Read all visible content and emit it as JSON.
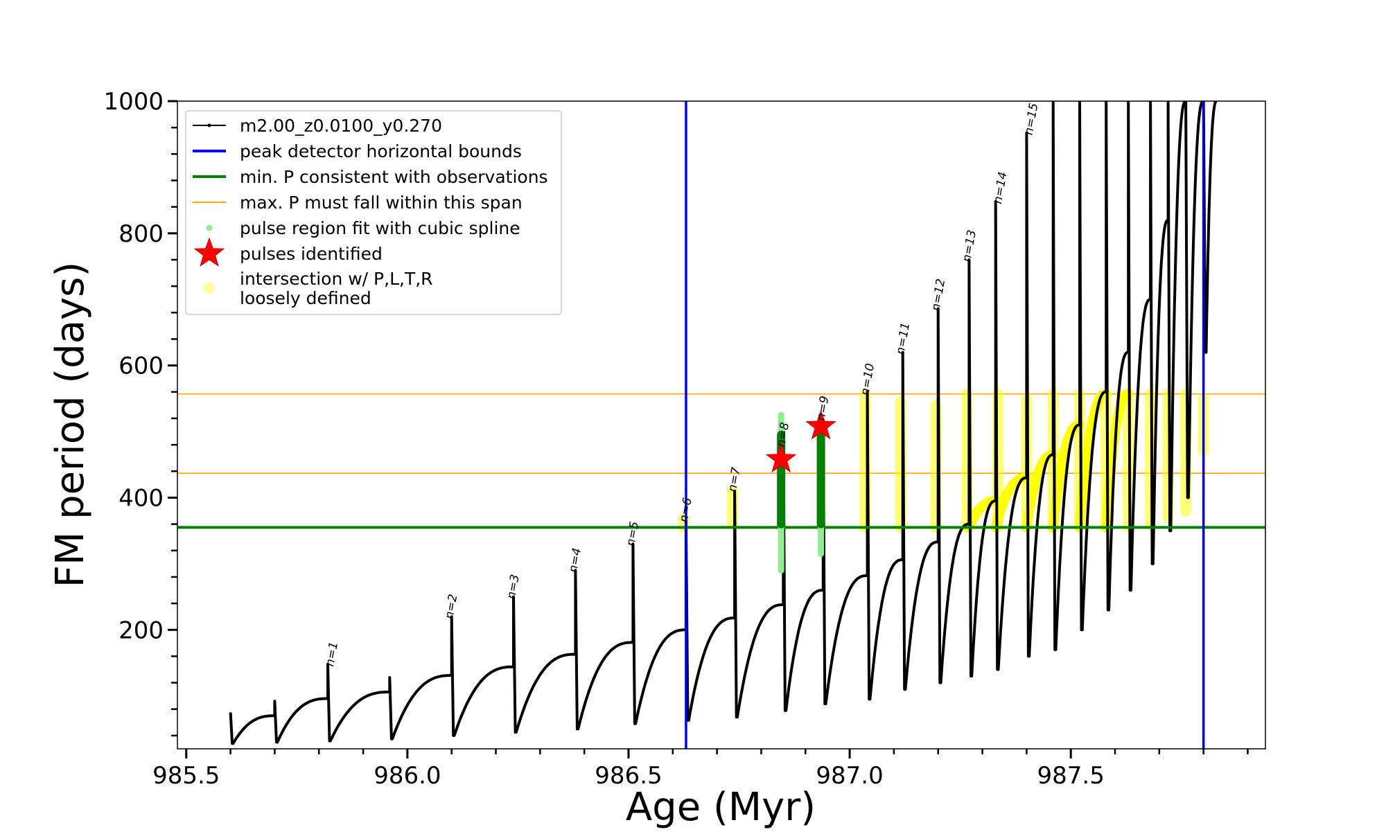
{
  "chart_data": {
    "type": "line",
    "xlabel": "Age (Myr)",
    "ylabel": "FM period (days)",
    "xlim": [
      985.48,
      987.94
    ],
    "ylim": [
      20,
      1000
    ],
    "x_ticks": [
      985.5,
      986.0,
      986.5,
      987.0,
      987.5
    ],
    "x_tick_labels": [
      "985.5",
      "986.0",
      "986.5",
      "987.0",
      "987.5"
    ],
    "y_ticks": [
      200,
      400,
      600,
      800,
      1000
    ],
    "y_tick_labels": [
      "200",
      "400",
      "600",
      "800",
      "1000"
    ],
    "grid": false,
    "legend_position": "top-left",
    "legend": [
      {
        "label": "m2.00_z0.0100_y0.270",
        "kind": "line-marker",
        "color": "#000000"
      },
      {
        "label": "peak detector horizontal bounds",
        "kind": "line",
        "color": "#0000ff"
      },
      {
        "label": "min. P consistent with observations",
        "kind": "line",
        "color": "#008000"
      },
      {
        "label": "max. P must fall within this span",
        "kind": "thin-line",
        "color": "#ffa500"
      },
      {
        "label": "pulse region fit with cubic spline",
        "kind": "dot",
        "color": "#90ee90"
      },
      {
        "label": "pulses identified",
        "kind": "star",
        "color": "#ff0000"
      },
      {
        "label": "intersection w/ P,L,T,R",
        "label2": "loosely defined",
        "kind": "circle",
        "color": "#ffff99"
      }
    ],
    "vertical_bounds": [
      986.63,
      987.8
    ],
    "min_period": 355,
    "max_period_span": [
      437,
      557
    ],
    "pulses_identified": [
      {
        "age": 986.845,
        "period": 458
      },
      {
        "age": 986.935,
        "period": 508
      }
    ],
    "pulse_labels": [
      {
        "label": "n=1",
        "age": 985.82,
        "period": 148
      },
      {
        "label": "n=2",
        "age": 986.09,
        "period": 220
      },
      {
        "label": "n=3",
        "age": 986.23,
        "period": 250
      },
      {
        "label": "n=4",
        "age": 986.37,
        "period": 290
      },
      {
        "label": "n=5",
        "age": 986.5,
        "period": 330
      },
      {
        "label": "n=6",
        "age": 986.62,
        "period": 366
      },
      {
        "label": "n=7",
        "age": 986.73,
        "period": 412
      },
      {
        "label": "n=8",
        "age": 986.84,
        "period": 480
      },
      {
        "label": "n=9",
        "age": 986.93,
        "period": 520
      },
      {
        "label": "n=10",
        "age": 987.03,
        "period": 558
      },
      {
        "label": "n=11",
        "age": 987.11,
        "period": 620
      },
      {
        "label": "n=12",
        "age": 987.19,
        "period": 686
      },
      {
        "label": "n=13",
        "age": 987.26,
        "period": 760
      },
      {
        "label": "n=14",
        "age": 987.33,
        "period": 848
      },
      {
        "label": "n=15",
        "age": 987.4,
        "period": 952
      }
    ],
    "series": [
      {
        "name": "m2.00_z0.0100_y0.270",
        "color": "#000000",
        "cycles": [
          {
            "start": 985.6,
            "end": 985.7,
            "spike": 75,
            "dip": 28,
            "top": 70
          },
          {
            "start": 985.7,
            "end": 985.82,
            "spike": 92,
            "dip": 30,
            "top": 96
          },
          {
            "start": 985.82,
            "end": 985.96,
            "spike": 148,
            "dip": 32,
            "top": 106
          },
          {
            "start": 985.96,
            "end": 986.1,
            "spike": 128,
            "dip": 35,
            "top": 131
          },
          {
            "start": 986.1,
            "end": 986.24,
            "spike": 220,
            "dip": 40,
            "top": 144
          },
          {
            "start": 986.24,
            "end": 986.38,
            "spike": 250,
            "dip": 45,
            "top": 163
          },
          {
            "start": 986.38,
            "end": 986.51,
            "spike": 290,
            "dip": 50,
            "top": 181
          },
          {
            "start": 986.51,
            "end": 986.63,
            "spike": 330,
            "dip": 58,
            "top": 200
          },
          {
            "start": 986.63,
            "end": 986.74,
            "spike": 365,
            "dip": 63,
            "top": 218
          },
          {
            "start": 986.74,
            "end": 986.85,
            "spike": 410,
            "dip": 68,
            "top": 238
          },
          {
            "start": 986.85,
            "end": 986.94,
            "spike": 500,
            "dip": 78,
            "top": 260
          },
          {
            "start": 986.94,
            "end": 987.04,
            "spike": 510,
            "dip": 88,
            "top": 282
          },
          {
            "start": 987.04,
            "end": 987.12,
            "spike": 560,
            "dip": 95,
            "top": 306
          },
          {
            "start": 987.12,
            "end": 987.2,
            "spike": 620,
            "dip": 110,
            "top": 333
          },
          {
            "start": 987.2,
            "end": 987.27,
            "spike": 686,
            "dip": 120,
            "top": 360
          },
          {
            "start": 987.27,
            "end": 987.33,
            "spike": 760,
            "dip": 130,
            "top": 395
          },
          {
            "start": 987.33,
            "end": 987.4,
            "spike": 848,
            "dip": 140,
            "top": 430
          },
          {
            "start": 987.4,
            "end": 987.46,
            "spike": 952,
            "dip": 160,
            "top": 465
          },
          {
            "start": 987.46,
            "end": 987.52,
            "spike": 1000,
            "dip": 170,
            "top": 510
          },
          {
            "start": 987.52,
            "end": 987.58,
            "spike": 1000,
            "dip": 200,
            "top": 560
          },
          {
            "start": 987.58,
            "end": 987.63,
            "spike": 1000,
            "dip": 230,
            "top": 620
          },
          {
            "start": 987.63,
            "end": 987.68,
            "spike": 1000,
            "dip": 260,
            "top": 700
          },
          {
            "start": 987.68,
            "end": 987.72,
            "spike": 1000,
            "dip": 300,
            "top": 820
          },
          {
            "start": 987.72,
            "end": 987.76,
            "spike": 1000,
            "dip": 350,
            "top": 1000
          },
          {
            "start": 987.76,
            "end": 987.8,
            "spike": 1000,
            "dip": 400,
            "top": 1000
          },
          {
            "start": 987.8,
            "end": 987.83,
            "spike": 1000,
            "dip": 620,
            "top": 1000
          }
        ]
      }
    ],
    "loose_intersections": {
      "color": "#ffff00",
      "spike_columns": [
        {
          "age": 986.625,
          "from": 355,
          "to": 368
        },
        {
          "age": 986.735,
          "from": 360,
          "to": 410
        },
        {
          "age": 987.035,
          "from": 355,
          "to": 557
        },
        {
          "age": 987.115,
          "from": 355,
          "to": 545
        },
        {
          "age": 987.195,
          "from": 355,
          "to": 540
        },
        {
          "age": 987.265,
          "from": 355,
          "to": 557
        },
        {
          "age": 987.335,
          "from": 355,
          "to": 557
        },
        {
          "age": 987.4,
          "from": 355,
          "to": 550
        },
        {
          "age": 987.46,
          "from": 355,
          "to": 557
        },
        {
          "age": 987.52,
          "from": 355,
          "to": 557
        },
        {
          "age": 987.58,
          "from": 355,
          "to": 557
        },
        {
          "age": 987.63,
          "from": 355,
          "to": 557
        },
        {
          "age": 987.68,
          "from": 360,
          "to": 557
        },
        {
          "age": 987.72,
          "from": 370,
          "to": 557
        },
        {
          "age": 987.76,
          "from": 380,
          "to": 557
        },
        {
          "age": 987.8,
          "from": 470,
          "to": 550
        }
      ],
      "arcs": [
        {
          "start": 987.27,
          "end": 987.33,
          "from": 355,
          "to": 395
        },
        {
          "start": 987.33,
          "end": 987.4,
          "from": 355,
          "to": 430
        },
        {
          "start": 987.4,
          "end": 987.46,
          "from": 355,
          "to": 465
        },
        {
          "start": 987.46,
          "end": 987.52,
          "from": 355,
          "to": 510
        },
        {
          "start": 987.52,
          "end": 987.58,
          "from": 355,
          "to": 557
        },
        {
          "start": 987.58,
          "end": 987.63,
          "from": 355,
          "to": 557
        }
      ]
    },
    "spline_fits": [
      {
        "age": 986.845,
        "dark_from": 360,
        "dark_to": 495,
        "light_from": 290,
        "light_to": 525
      },
      {
        "age": 986.935,
        "dark_from": 360,
        "dark_to": 500,
        "light_from": 315,
        "light_to": 520
      }
    ]
  }
}
